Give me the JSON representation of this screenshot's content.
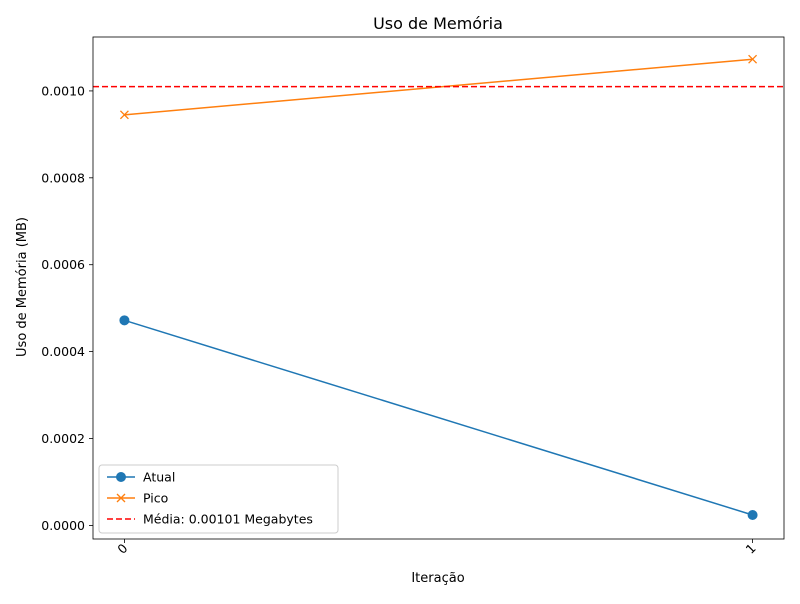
{
  "chart_data": {
    "type": "line",
    "title": "Uso de Memória",
    "xlabel": "Iteração",
    "ylabel": "Uso de Memória (MB)",
    "x": [
      0,
      1
    ],
    "xticks": [
      "0",
      "1"
    ],
    "yticks": [
      "0.0000",
      "0.0002",
      "0.0004",
      "0.0006",
      "0.0008",
      "0.0010"
    ],
    "xlim": [
      -0.05,
      1.05
    ],
    "ylim": [
      -3.13e-05,
      0.0011241
    ],
    "grid": false,
    "legend_position": "lower-left",
    "series": [
      {
        "name": "Atual",
        "values": [
          0.000472,
          2.4e-05
        ],
        "color": "#1f77b4",
        "marker": "circle"
      },
      {
        "name": "Pico",
        "values": [
          0.000945,
          0.001073
        ],
        "color": "#ff7f0e",
        "marker": "x"
      }
    ],
    "reference_lines": [
      {
        "label": "Média: 0.00101 Megabytes",
        "value": 0.00101,
        "color": "#ff0000",
        "style": "dashed"
      }
    ]
  }
}
